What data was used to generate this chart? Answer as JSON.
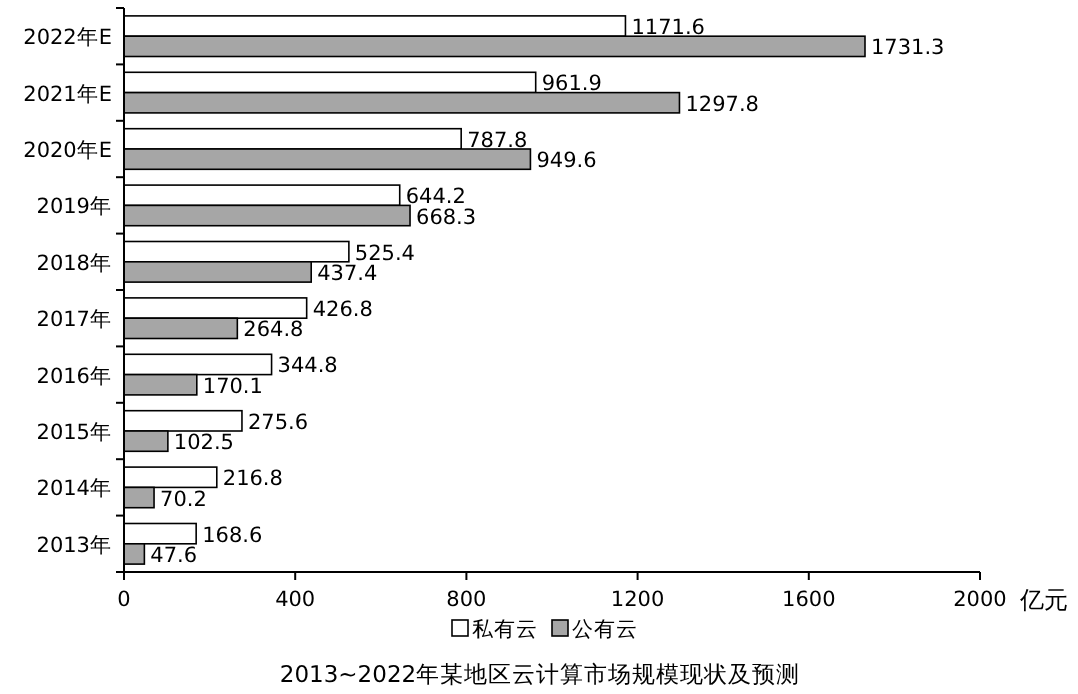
{
  "chart_data": {
    "type": "bar",
    "orientation": "horizontal",
    "title": "2013~2022年某地区云计算市场规模现状及预测",
    "xlabel": "亿元",
    "categories": [
      "2022年E",
      "2021年E",
      "2020年E",
      "2019年",
      "2018年",
      "2017年",
      "2016年",
      "2015年",
      "2014年",
      "2013年"
    ],
    "series": [
      {
        "name": "私有云",
        "color": "#ffffff",
        "values": [
          1171.6,
          961.9,
          787.8,
          644.2,
          525.4,
          426.8,
          344.8,
          275.6,
          216.8,
          168.6
        ]
      },
      {
        "name": "公有云",
        "color": "#a6a6a6",
        "values": [
          1731.3,
          1297.8,
          949.6,
          668.3,
          437.4,
          264.8,
          170.1,
          102.5,
          70.2,
          47.6
        ]
      }
    ],
    "xlim": [
      0,
      2000
    ],
    "xticks": [
      0,
      400,
      800,
      1200,
      1600,
      2000
    ],
    "data_labels": true,
    "legend": "bottom",
    "grid": false
  }
}
